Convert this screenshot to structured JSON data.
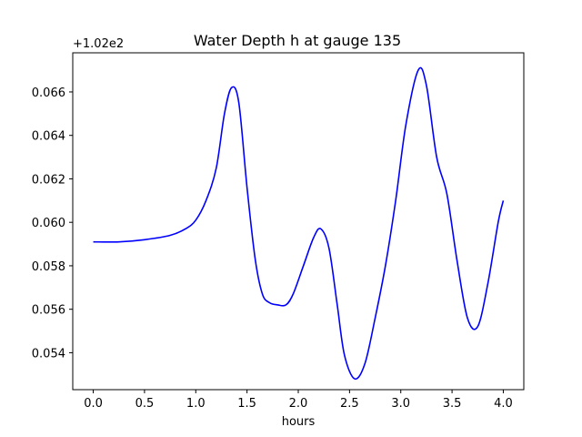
{
  "chart_data": {
    "type": "line",
    "title": "Water Depth h at gauge 135",
    "xlabel": "hours",
    "ylabel": "",
    "y_offset_label": "+1.02e2",
    "y_offset": 102,
    "xlim": [
      -0.2,
      4.2
    ],
    "ylim": [
      0.0523,
      0.0678
    ],
    "x_ticks": [
      0.0,
      0.5,
      1.0,
      1.5,
      2.0,
      2.5,
      3.0,
      3.5,
      4.0
    ],
    "x_tick_labels": [
      "0.0",
      "0.5",
      "1.0",
      "1.5",
      "2.0",
      "2.5",
      "3.0",
      "3.5",
      "4.0"
    ],
    "y_ticks": [
      0.054,
      0.056,
      0.058,
      0.06,
      0.062,
      0.064,
      0.066
    ],
    "y_tick_labels": [
      "0.054",
      "0.056",
      "0.058",
      "0.060",
      "0.062",
      "0.064",
      "0.066"
    ],
    "grid": false,
    "series": [
      {
        "color": "#0000ff",
        "x": [
          0.0,
          0.25,
          0.5,
          0.75,
          0.9,
          1.0,
          1.1,
          1.2,
          1.28,
          1.35,
          1.42,
          1.5,
          1.58,
          1.65,
          1.72,
          1.8,
          1.88,
          1.95,
          2.05,
          2.15,
          2.22,
          2.3,
          2.38,
          2.45,
          2.55,
          2.65,
          2.75,
          2.85,
          2.95,
          3.05,
          3.17,
          3.25,
          3.35,
          3.45,
          3.55,
          3.65,
          3.75,
          3.85,
          3.95,
          4.0
        ],
        "y": [
          0.0591,
          0.0591,
          0.0592,
          0.0594,
          0.0597,
          0.0601,
          0.061,
          0.0625,
          0.065,
          0.0662,
          0.0655,
          0.0616,
          0.0583,
          0.0567,
          0.0563,
          0.0562,
          0.0562,
          0.0567,
          0.058,
          0.0593,
          0.0597,
          0.0588,
          0.0562,
          0.0539,
          0.0528,
          0.0535,
          0.0556,
          0.058,
          0.061,
          0.0645,
          0.067,
          0.0663,
          0.063,
          0.0613,
          0.0582,
          0.0556,
          0.0552,
          0.0572,
          0.06,
          0.061
        ]
      }
    ]
  }
}
